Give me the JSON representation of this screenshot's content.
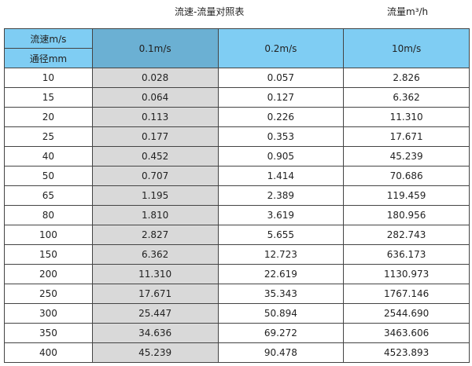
{
  "title": "流速-流量对照表",
  "unit": "流量m³/h",
  "header": {
    "velocity_label": "流速m/s",
    "diameter_label": "通径mm",
    "cols": [
      "0.1m/s",
      "0.2m/s",
      "10m/s"
    ]
  },
  "colors": {
    "header": "#7fcdf3",
    "header_highlight": "#6bb0d3",
    "column_highlight": "#d9d9d9"
  },
  "rows": [
    [
      "10",
      "0.028",
      "0.057",
      "2.826"
    ],
    [
      "15",
      "0.064",
      "0.127",
      "6.362"
    ],
    [
      "20",
      "0.113",
      "0.226",
      "11.310"
    ],
    [
      "25",
      "0.177",
      "0.353",
      "17.671"
    ],
    [
      "40",
      "0.452",
      "0.905",
      "45.239"
    ],
    [
      "50",
      "0.707",
      "1.414",
      "70.686"
    ],
    [
      "65",
      "1.195",
      "2.389",
      "119.459"
    ],
    [
      "80",
      "1.810",
      "3.619",
      "180.956"
    ],
    [
      "100",
      "2.827",
      "5.655",
      "282.743"
    ],
    [
      "150",
      "6.362",
      "12.723",
      "636.173"
    ],
    [
      "200",
      "11.310",
      "22.619",
      "1130.973"
    ],
    [
      "250",
      "17.671",
      "35.343",
      "1767.146"
    ],
    [
      "300",
      "25.447",
      "50.894",
      "2544.690"
    ],
    [
      "350",
      "34.636",
      "69.272",
      "3463.606"
    ],
    [
      "400",
      "45.239",
      "90.478",
      "4523.893"
    ]
  ]
}
